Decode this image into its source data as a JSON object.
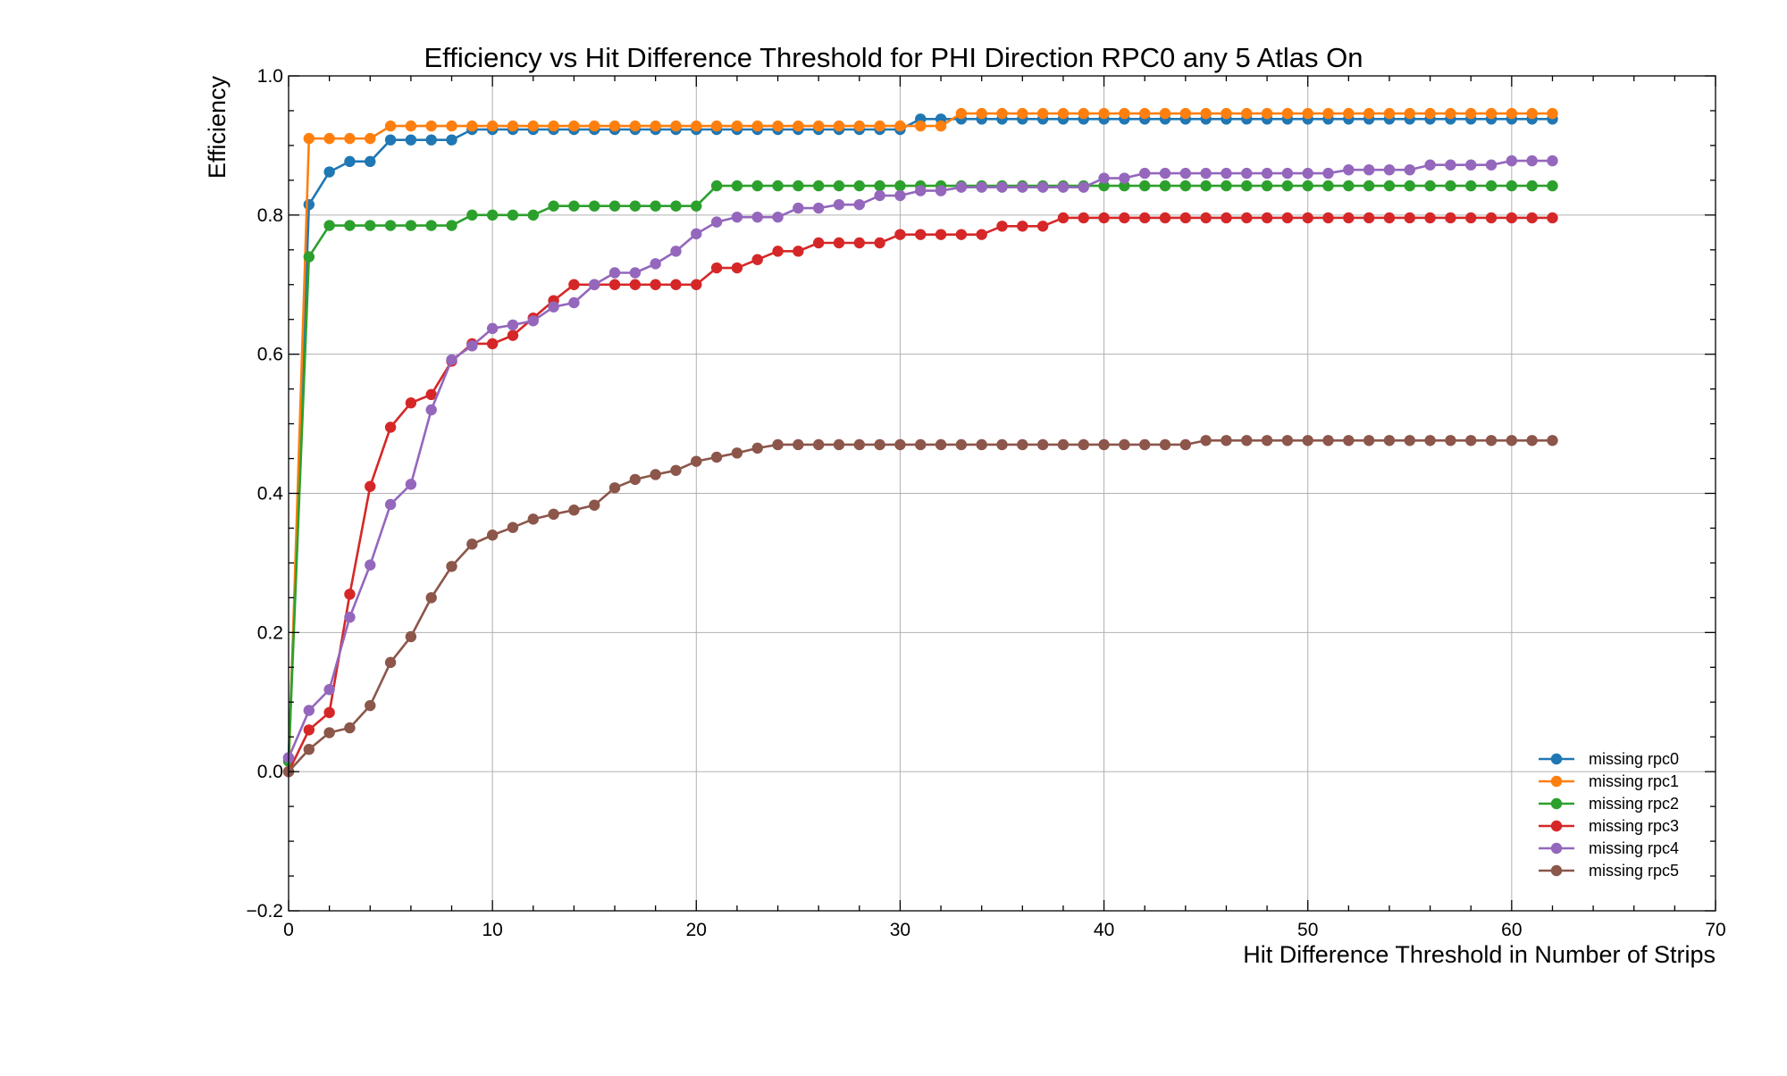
{
  "chart_data": {
    "type": "line",
    "title": "Efficiency vs Hit Difference Threshold for PHI Direction RPC0 any 5 Atlas On",
    "xlabel": "Hit Difference Threshold in Number of Strips",
    "ylabel": "Efficiency",
    "xlim": [
      0,
      70
    ],
    "ylim": [
      -0.2,
      1.0
    ],
    "xticks": [
      0,
      10,
      20,
      30,
      40,
      50,
      60,
      70
    ],
    "xtick_labels": [
      "0",
      "10",
      "20",
      "30",
      "40",
      "50",
      "60",
      "70"
    ],
    "yticks": [
      -0.2,
      0.0,
      0.2,
      0.4,
      0.6,
      0.8,
      1.0
    ],
    "ytick_labels": [
      "−0.2",
      "0.0",
      "0.2",
      "0.4",
      "0.6",
      "0.8",
      "1.0"
    ],
    "grid": true,
    "legend_position": "bottom-right",
    "x": [
      0,
      1,
      2,
      3,
      4,
      5,
      6,
      7,
      8,
      9,
      10,
      11,
      12,
      13,
      14,
      15,
      16,
      17,
      18,
      19,
      20,
      21,
      22,
      23,
      24,
      25,
      26,
      27,
      28,
      29,
      30,
      31,
      32,
      33,
      34,
      35,
      36,
      37,
      38,
      39,
      40,
      41,
      42,
      43,
      44,
      45,
      46,
      47,
      48,
      49,
      50,
      51,
      52,
      53,
      54,
      55,
      56,
      57,
      58,
      59,
      60,
      61,
      62
    ],
    "series": [
      {
        "name": "missing rpc0",
        "color": "#1f77b4",
        "values": [
          0.02,
          0.815,
          0.862,
          0.877,
          0.877,
          0.908,
          0.908,
          0.908,
          0.908,
          0.923,
          0.923,
          0.923,
          0.923,
          0.923,
          0.923,
          0.923,
          0.923,
          0.923,
          0.923,
          0.923,
          0.923,
          0.923,
          0.923,
          0.923,
          0.923,
          0.923,
          0.923,
          0.923,
          0.923,
          0.923,
          0.923,
          0.938,
          0.938,
          0.938,
          0.938,
          0.938,
          0.938,
          0.938,
          0.938,
          0.938,
          0.938,
          0.938,
          0.938,
          0.938,
          0.938,
          0.938,
          0.938,
          0.938,
          0.938,
          0.938,
          0.938,
          0.938,
          0.938,
          0.938,
          0.938,
          0.938,
          0.938,
          0.938,
          0.938,
          0.938,
          0.938,
          0.938,
          0.938
        ]
      },
      {
        "name": "missing rpc1",
        "color": "#ff7f0e",
        "values": [
          0.0,
          0.91,
          0.91,
          0.91,
          0.91,
          0.928,
          0.928,
          0.928,
          0.928,
          0.928,
          0.928,
          0.928,
          0.928,
          0.928,
          0.928,
          0.928,
          0.928,
          0.928,
          0.928,
          0.928,
          0.928,
          0.928,
          0.928,
          0.928,
          0.928,
          0.928,
          0.928,
          0.928,
          0.928,
          0.928,
          0.928,
          0.928,
          0.928,
          0.946,
          0.946,
          0.946,
          0.946,
          0.946,
          0.946,
          0.946,
          0.946,
          0.946,
          0.946,
          0.946,
          0.946,
          0.946,
          0.946,
          0.946,
          0.946,
          0.946,
          0.946,
          0.946,
          0.946,
          0.946,
          0.946,
          0.946,
          0.946,
          0.946,
          0.946,
          0.946,
          0.946,
          0.946,
          0.946
        ]
      },
      {
        "name": "missing rpc2",
        "color": "#2ca02c",
        "values": [
          0.015,
          0.74,
          0.785,
          0.785,
          0.785,
          0.785,
          0.785,
          0.785,
          0.785,
          0.8,
          0.8,
          0.8,
          0.8,
          0.813,
          0.813,
          0.813,
          0.813,
          0.813,
          0.813,
          0.813,
          0.813,
          0.842,
          0.842,
          0.842,
          0.842,
          0.842,
          0.842,
          0.842,
          0.842,
          0.842,
          0.842,
          0.842,
          0.842,
          0.842,
          0.842,
          0.842,
          0.842,
          0.842,
          0.842,
          0.842,
          0.842,
          0.842,
          0.842,
          0.842,
          0.842,
          0.842,
          0.842,
          0.842,
          0.842,
          0.842,
          0.842,
          0.842,
          0.842,
          0.842,
          0.842,
          0.842,
          0.842,
          0.842,
          0.842,
          0.842,
          0.842,
          0.842,
          0.842
        ]
      },
      {
        "name": "missing rpc3",
        "color": "#d62728",
        "values": [
          0.0,
          0.06,
          0.085,
          0.255,
          0.41,
          0.495,
          0.53,
          0.542,
          0.59,
          0.615,
          0.615,
          0.627,
          0.652,
          0.677,
          0.7,
          0.7,
          0.7,
          0.7,
          0.7,
          0.7,
          0.7,
          0.724,
          0.724,
          0.736,
          0.748,
          0.748,
          0.76,
          0.76,
          0.76,
          0.76,
          0.772,
          0.772,
          0.772,
          0.772,
          0.772,
          0.784,
          0.784,
          0.784,
          0.796,
          0.796,
          0.796,
          0.796,
          0.796,
          0.796,
          0.796,
          0.796,
          0.796,
          0.796,
          0.796,
          0.796,
          0.796,
          0.796,
          0.796,
          0.796,
          0.796,
          0.796,
          0.796,
          0.796,
          0.796,
          0.796,
          0.796,
          0.796,
          0.796
        ]
      },
      {
        "name": "missing rpc4",
        "color": "#9467bd",
        "values": [
          0.02,
          0.088,
          0.118,
          0.222,
          0.297,
          0.384,
          0.413,
          0.52,
          0.592,
          0.612,
          0.637,
          0.642,
          0.648,
          0.668,
          0.674,
          0.7,
          0.717,
          0.717,
          0.73,
          0.748,
          0.773,
          0.79,
          0.797,
          0.797,
          0.797,
          0.81,
          0.81,
          0.815,
          0.815,
          0.828,
          0.828,
          0.835,
          0.835,
          0.84,
          0.84,
          0.84,
          0.84,
          0.84,
          0.84,
          0.84,
          0.853,
          0.853,
          0.86,
          0.86,
          0.86,
          0.86,
          0.86,
          0.86,
          0.86,
          0.86,
          0.86,
          0.86,
          0.865,
          0.865,
          0.865,
          0.865,
          0.872,
          0.872,
          0.872,
          0.872,
          0.878,
          0.878,
          0.878
        ]
      },
      {
        "name": "missing rpc5",
        "color": "#8c564b",
        "values": [
          0.0,
          0.032,
          0.056,
          0.063,
          0.095,
          0.157,
          0.194,
          0.25,
          0.295,
          0.327,
          0.34,
          0.351,
          0.363,
          0.37,
          0.376,
          0.383,
          0.408,
          0.42,
          0.427,
          0.433,
          0.446,
          0.452,
          0.458,
          0.465,
          0.47,
          0.47,
          0.47,
          0.47,
          0.47,
          0.47,
          0.47,
          0.47,
          0.47,
          0.47,
          0.47,
          0.47,
          0.47,
          0.47,
          0.47,
          0.47,
          0.47,
          0.47,
          0.47,
          0.47,
          0.47,
          0.476,
          0.476,
          0.476,
          0.476,
          0.476,
          0.476,
          0.476,
          0.476,
          0.476,
          0.476,
          0.476,
          0.476,
          0.476,
          0.476,
          0.476,
          0.476,
          0.476,
          0.476
        ]
      }
    ]
  }
}
